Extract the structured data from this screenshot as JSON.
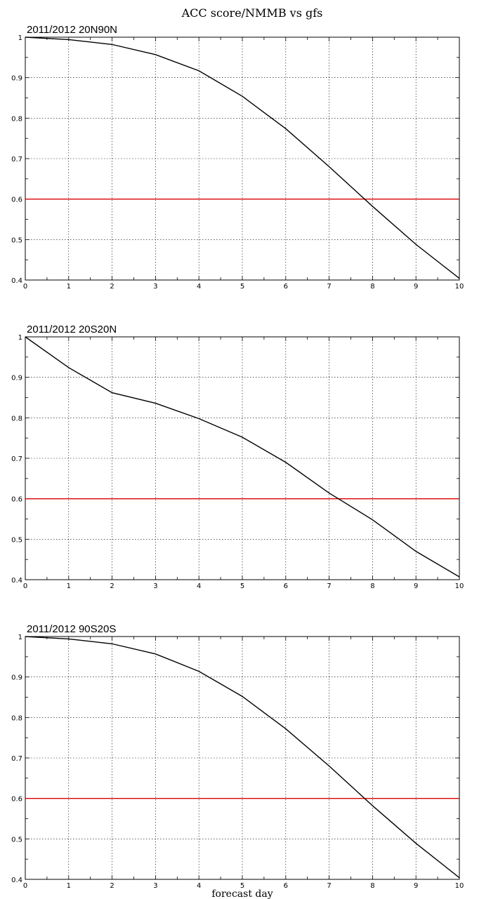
{
  "figure": {
    "title": "ACC score/NMMB vs gfs",
    "xlabel": "forecast day"
  },
  "colors": {
    "series_line": "#000000",
    "threshold_line": "#dd0000",
    "grid": "#000000",
    "background": "#ffffff"
  },
  "chart_data": [
    {
      "type": "line",
      "title": "2011/2012 20N90N",
      "x": [
        0,
        1,
        2,
        3,
        4,
        5,
        6,
        7,
        8,
        9,
        10
      ],
      "xlim": [
        0,
        10
      ],
      "ylim": [
        0.4,
        1.0
      ],
      "xticks": [
        "0",
        "1",
        "2",
        "3",
        "4",
        "5",
        "6",
        "7",
        "8",
        "9",
        "10"
      ],
      "yticks": [
        "0.4",
        "0.5",
        "0.6",
        "0.7",
        "0.8",
        "0.9",
        "1"
      ],
      "grid": true,
      "series": [
        {
          "values": [
            1.0,
            0.994,
            0.982,
            0.957,
            0.917,
            0.854,
            0.774,
            0.68,
            0.582,
            0.488,
            0.404
          ]
        }
      ],
      "reference_line": {
        "y": 0.6
      }
    },
    {
      "type": "line",
      "title": "2011/2012 20S20N",
      "x": [
        0,
        1,
        2,
        3,
        4,
        5,
        6,
        7,
        8,
        9,
        10
      ],
      "xlim": [
        0,
        10
      ],
      "ylim": [
        0.4,
        1.0
      ],
      "xticks": [
        "0",
        "1",
        "2",
        "3",
        "4",
        "5",
        "6",
        "7",
        "8",
        "9",
        "10"
      ],
      "yticks": [
        "0.4",
        "0.5",
        "0.6",
        "0.7",
        "0.8",
        "0.9",
        "1"
      ],
      "grid": true,
      "series": [
        {
          "values": [
            1.0,
            0.924,
            0.862,
            0.836,
            0.798,
            0.752,
            0.69,
            0.614,
            0.548,
            0.47,
            0.407
          ]
        }
      ],
      "reference_line": {
        "y": 0.6
      }
    },
    {
      "type": "line",
      "title": "2011/2012 90S20S",
      "x": [
        0,
        1,
        2,
        3,
        4,
        5,
        6,
        7,
        8,
        9,
        10
      ],
      "xlim": [
        0,
        10
      ],
      "ylim": [
        0.4,
        1.0
      ],
      "xticks": [
        "0",
        "1",
        "2",
        "3",
        "4",
        "5",
        "6",
        "7",
        "8",
        "9",
        "10"
      ],
      "yticks": [
        "0.4",
        "0.5",
        "0.6",
        "0.7",
        "0.8",
        "0.9",
        "1"
      ],
      "grid": true,
      "series": [
        {
          "values": [
            1.0,
            0.994,
            0.982,
            0.957,
            0.914,
            0.852,
            0.772,
            0.68,
            0.582,
            0.489,
            0.404
          ]
        }
      ],
      "reference_line": {
        "y": 0.6
      }
    }
  ]
}
